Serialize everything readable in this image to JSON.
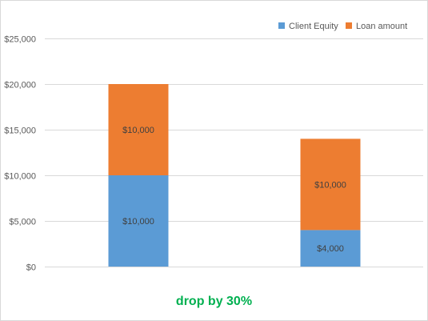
{
  "chart_data": {
    "type": "bar",
    "stacked": true,
    "categories": [
      "",
      ""
    ],
    "series": [
      {
        "name": "Client Equity",
        "values": [
          10000,
          4000
        ],
        "labels": [
          "$10,000",
          "$4,000"
        ],
        "color": "#5b9bd5"
      },
      {
        "name": "Loan amount",
        "values": [
          10000,
          10000
        ],
        "labels": [
          "$10,000",
          "$10,000"
        ],
        "color": "#ed7d31"
      }
    ],
    "ylim": [
      0,
      25000
    ],
    "y_ticks": [
      {
        "value": 0,
        "label": "$0"
      },
      {
        "value": 5000,
        "label": "$5,000"
      },
      {
        "value": 10000,
        "label": "$10,000"
      },
      {
        "value": 15000,
        "label": "$15,000"
      },
      {
        "value": 20000,
        "label": "$20,000"
      },
      {
        "value": 25000,
        "label": "$25,000"
      }
    ],
    "grid": true,
    "legend": "top-right",
    "title": "",
    "xlabel": "",
    "ylabel": "",
    "annotation": {
      "text": "drop by 30%",
      "color": "#00b050"
    }
  }
}
